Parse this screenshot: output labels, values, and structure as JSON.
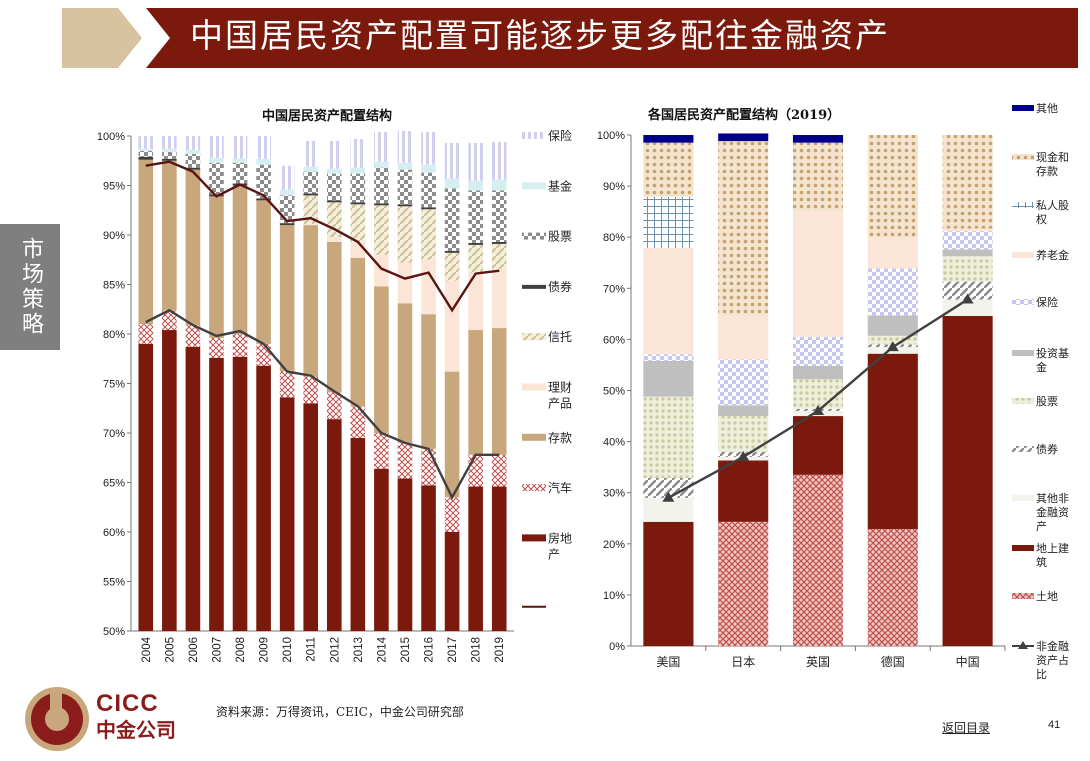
{
  "header": {
    "title": "中国居民资产配置可能逐步更多配往金融资产"
  },
  "side_tab": {
    "label": "市场策略"
  },
  "colors": {
    "band": "#7b1a0c",
    "tan": "#d8c3a1",
    "real_estate": "#7b1a0c",
    "car": "#d9a6a0",
    "deposit": "#c9a77c",
    "wealth": "#fbe5d6",
    "trust": "#e6dcc1",
    "bond": "#404040",
    "stocks": "#a6a6a6",
    "fund": "#d7eef1",
    "insurance": "#d0cff0",
    "line": "#5a1414",
    "other": "#00008b",
    "cash": "#d9b28a",
    "pe": "#aec3d2",
    "pension": "#fbe5d6",
    "ins2": "#cdd0f5",
    "invest_fund": "#bfbfbf",
    "stock2": "#d7d7b5",
    "bond2": "#a6a6a6",
    "other_nonfin": "#f3f3ed",
    "building": "#7b1a0c",
    "land": "#d9746c",
    "share_line": "#404040"
  },
  "chart_data": [
    {
      "type": "bar",
      "title": "中国居民资产配置结构",
      "categories": [
        "2004",
        "2005",
        "2006",
        "2007",
        "2008",
        "2009",
        "2010",
        "2011",
        "2012",
        "2013",
        "2014",
        "2015",
        "2016",
        "2017",
        "2018",
        "2019"
      ],
      "ylim": [
        50,
        100
      ],
      "yticks": [
        "50%",
        "55%",
        "60%",
        "65%",
        "70%",
        "75%",
        "80%",
        "85%",
        "90%",
        "95%",
        "100%"
      ],
      "series": [
        {
          "name": "房地产",
          "key": "real_estate",
          "values": [
            79.0,
            80.4,
            78.7,
            77.6,
            77.7,
            76.8,
            73.6,
            73.0,
            71.4,
            69.5,
            66.4,
            65.4,
            64.7,
            60.0,
            64.6,
            64.6
          ]
        },
        {
          "name": "汽车",
          "key": "car",
          "values": [
            2.0,
            2.0,
            2.2,
            2.0,
            2.3,
            2.2,
            2.7,
            2.7,
            2.7,
            3.2,
            3.6,
            3.6,
            3.7,
            3.5,
            3.2,
            3.2
          ]
        },
        {
          "name": "存款",
          "key": "deposit",
          "values": [
            16.6,
            15.1,
            15.7,
            14.3,
            15.0,
            14.5,
            14.7,
            15.3,
            15.2,
            15.0,
            14.8,
            14.1,
            13.6,
            12.7,
            12.6,
            12.8
          ]
        },
        {
          "name": "理财产品",
          "key": "wealth",
          "values": [
            0.0,
            0.0,
            0.0,
            0.0,
            0.0,
            0.0,
            0.0,
            0.1,
            0.5,
            1.5,
            3.2,
            4.1,
            5.5,
            9.2,
            5.8,
            6.0
          ]
        },
        {
          "name": "信托",
          "key": "trust",
          "values": [
            0.0,
            0.0,
            0.0,
            0.0,
            0.0,
            0.0,
            0.0,
            2.9,
            3.5,
            3.9,
            5.0,
            5.7,
            5.1,
            2.8,
            2.8,
            2.5
          ]
        },
        {
          "name": "债券",
          "key": "bond",
          "values": [
            0.3,
            0.2,
            0.2,
            0.2,
            0.2,
            0.2,
            0.2,
            0.2,
            0.2,
            0.2,
            0.2,
            0.2,
            0.2,
            0.2,
            0.2,
            0.2
          ]
        },
        {
          "name": "股票",
          "key": "stocks",
          "values": [
            0.6,
            0.7,
            1.4,
            3.2,
            2.1,
            3.4,
            2.8,
            2.2,
            2.7,
            2.9,
            3.6,
            3.5,
            3.5,
            6.3,
            5.3,
            5.2
          ]
        },
        {
          "name": "基金",
          "key": "fund",
          "values": [
            0.2,
            0.3,
            0.4,
            0.5,
            0.4,
            0.6,
            0.6,
            0.5,
            0.5,
            0.6,
            0.6,
            0.7,
            0.8,
            1.0,
            1.0,
            1.1
          ]
        },
        {
          "name": "保险",
          "key": "insurance",
          "values": [
            1.3,
            1.3,
            1.4,
            2.2,
            2.3,
            2.3,
            2.4,
            2.6,
            2.8,
            2.9,
            3.0,
            3.2,
            3.3,
            3.6,
            3.8,
            3.8
          ]
        }
      ],
      "line": {
        "name": "",
        "values": [
          97.0,
          97.4,
          96.4,
          93.9,
          95.1,
          94.0,
          91.4,
          91.7,
          90.6,
          89.3,
          86.6,
          85.6,
          86.2,
          82.4,
          86.1,
          86.4
        ]
      },
      "line2": {
        "values": [
          81.2,
          82.4,
          80.9,
          79.8,
          80.3,
          79.0,
          76.2,
          75.8,
          74.2,
          72.7,
          70.0,
          69.0,
          68.4,
          63.5,
          67.8,
          67.8
        ]
      },
      "legend": [
        {
          "key": "insurance",
          "label": "保险"
        },
        {
          "key": "fund",
          "label": "基金"
        },
        {
          "key": "stocks",
          "label": "股票"
        },
        {
          "key": "bond",
          "label": "债券"
        },
        {
          "key": "trust",
          "label": "信托"
        },
        {
          "key": "wealth",
          "label": "理财产品"
        },
        {
          "key": "deposit",
          "label": "存款"
        },
        {
          "key": "car",
          "label": "汽车"
        },
        {
          "key": "real_estate",
          "label": "房地产"
        },
        {
          "key": "line",
          "label": ""
        }
      ]
    },
    {
      "type": "bar",
      "title": "各国居民资产配置结构（2019）",
      "categories": [
        "美国",
        "日本",
        "英国",
        "德国",
        "中国"
      ],
      "ylim": [
        0,
        100
      ],
      "yticks": [
        "0%",
        "10%",
        "20%",
        "30%",
        "40%",
        "50%",
        "60%",
        "70%",
        "80%",
        "90%",
        "100%"
      ],
      "series": [
        {
          "name": "土地",
          "key": "land",
          "values": [
            0,
            24.3,
            33.5,
            22.9,
            0
          ]
        },
        {
          "name": "地上建筑",
          "key": "building",
          "values": [
            24.3,
            12.0,
            11.5,
            34.3,
            64.6
          ]
        },
        {
          "name": "其他非金融资产",
          "key": "other_nonfin",
          "values": [
            4.7,
            0.7,
            1.0,
            1.3,
            3.2
          ]
        },
        {
          "name": "债券",
          "key": "bond2",
          "values": [
            3.9,
            1.0,
            0.4,
            0.5,
            3.5
          ]
        },
        {
          "name": "股票",
          "key": "stock2",
          "values": [
            15.9,
            7.0,
            5.8,
            1.7,
            5.0
          ]
        },
        {
          "name": "投资基金",
          "key": "invest_fund",
          "values": [
            7.0,
            2.1,
            2.6,
            4.0,
            1.3
          ]
        },
        {
          "name": "保险",
          "key": "ins2",
          "values": [
            1.3,
            9.0,
            5.7,
            9.2,
            3.6
          ]
        },
        {
          "name": "养老金",
          "key": "pension",
          "values": [
            20.8,
            8.5,
            24.6,
            6.0,
            0.5
          ]
        },
        {
          "name": "私人股权",
          "key": "pe",
          "values": [
            10.0,
            0,
            0,
            0,
            0
          ]
        },
        {
          "name": "现金和存款",
          "key": "cash",
          "values": [
            10.6,
            34.2,
            13.4,
            20.1,
            18.3
          ]
        },
        {
          "name": "其他",
          "key": "other",
          "values": [
            1.5,
            1.5,
            1.5,
            0,
            0
          ]
        }
      ],
      "line": {
        "name": "非金融资产占比",
        "values": [
          29.0,
          37.0,
          46.0,
          58.5,
          67.8
        ]
      },
      "legend": [
        {
          "key": "other",
          "label": "其他"
        },
        {
          "key": "cash",
          "label": "现金和存款"
        },
        {
          "key": "pe",
          "label": "私人股权"
        },
        {
          "key": "pension",
          "label": "养老金"
        },
        {
          "key": "ins2",
          "label": "保险"
        },
        {
          "key": "invest_fund",
          "label": "投资基金"
        },
        {
          "key": "stock2",
          "label": "股票"
        },
        {
          "key": "bond2",
          "label": "债券"
        },
        {
          "key": "other_nonfin",
          "label": "其他非金融资产"
        },
        {
          "key": "building",
          "label": "地上建筑"
        },
        {
          "key": "land",
          "label": "土地"
        },
        {
          "key": "share_line",
          "label": "非金融资产占比"
        }
      ]
    }
  ],
  "footer": {
    "source": "资料来源：万得资讯，CEIC，中金公司研究部",
    "toc_link": "返回目录",
    "page": "41",
    "logo_en": "CICC",
    "logo_cn": "中金公司"
  }
}
